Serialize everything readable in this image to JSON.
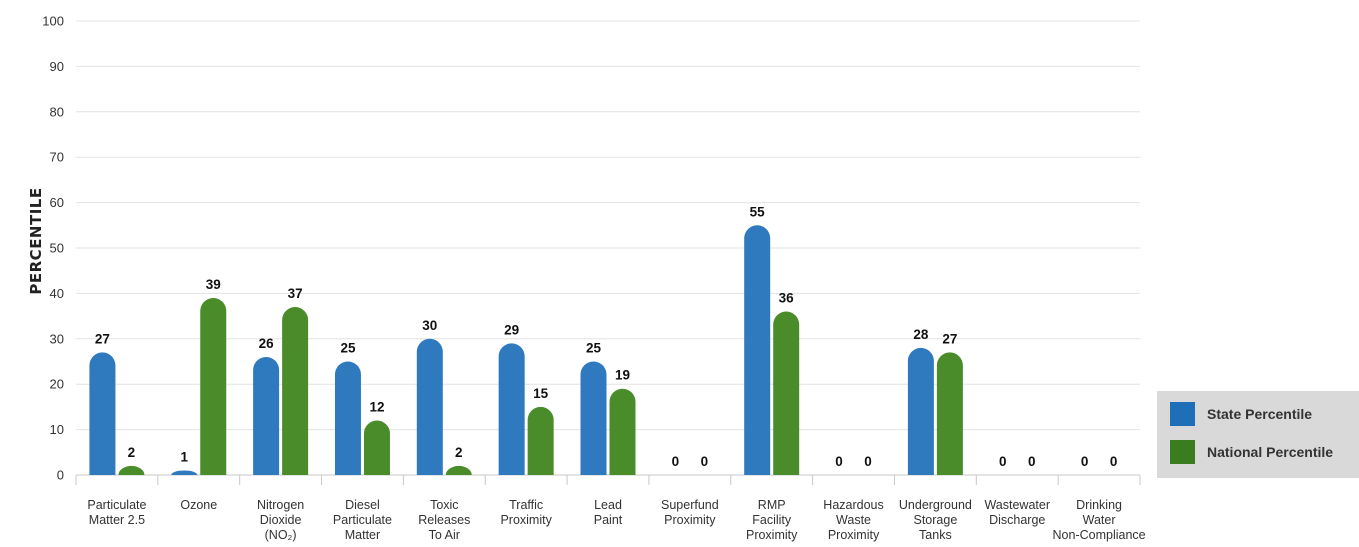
{
  "chart_data": {
    "type": "bar",
    "ylabel": "PERCENTILE",
    "ylim": [
      0,
      100
    ],
    "yticks": [
      0,
      10,
      20,
      30,
      40,
      50,
      60,
      70,
      80,
      90,
      100
    ],
    "grid": true,
    "legend_position": "right",
    "categories": [
      [
        "Particulate",
        "Matter 2.5"
      ],
      [
        "Ozone"
      ],
      [
        "Nitrogen",
        "Dioxide",
        "(NO₂)"
      ],
      [
        "Diesel",
        "Particulate",
        "Matter"
      ],
      [
        "Toxic",
        "Releases",
        "To Air"
      ],
      [
        "Traffic",
        "Proximity"
      ],
      [
        "Lead",
        "Paint"
      ],
      [
        "Superfund",
        "Proximity"
      ],
      [
        "RMP",
        "Facility",
        "Proximity"
      ],
      [
        "Hazardous",
        "Waste",
        "Proximity"
      ],
      [
        "Underground",
        "Storage",
        "Tanks"
      ],
      [
        "Wastewater",
        "Discharge"
      ],
      [
        "Drinking",
        "Water",
        "Non-Compliance"
      ]
    ],
    "series": [
      {
        "name": "State Percentile",
        "color": "#2f79bf",
        "values": [
          27,
          1,
          26,
          25,
          30,
          29,
          25,
          0,
          55,
          0,
          28,
          0,
          0
        ]
      },
      {
        "name": "National Percentile",
        "color": "#4a8c2a",
        "values": [
          2,
          39,
          37,
          12,
          2,
          15,
          19,
          0,
          36,
          0,
          27,
          0,
          0
        ]
      }
    ]
  },
  "legend": {
    "items": [
      {
        "label": "State Percentile",
        "color": "#1f6fb8"
      },
      {
        "label": "National Percentile",
        "color": "#3a7d1e"
      }
    ]
  }
}
